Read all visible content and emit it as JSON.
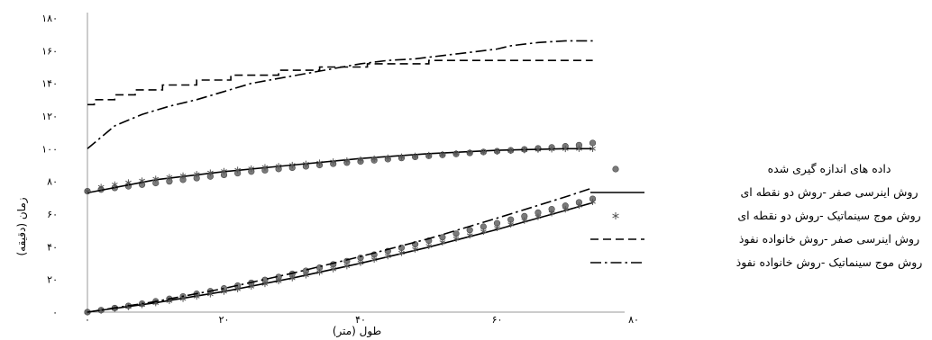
{
  "chart_data": {
    "type": "line",
    "xlabel": "طول (متر)",
    "ylabel": "زمان (دقیقه)",
    "xlim": [
      0,
      80
    ],
    "ylim": [
      0,
      180
    ],
    "x_ticks": [
      {
        "value": 0,
        "label": "۰"
      },
      {
        "value": 20,
        "label": "۲۰"
      },
      {
        "value": 40,
        "label": "۴۰"
      },
      {
        "value": 60,
        "label": "۶۰"
      },
      {
        "value": 80,
        "label": "۸۰"
      }
    ],
    "y_ticks": [
      {
        "value": 0,
        "label": "۰"
      },
      {
        "value": 20,
        "label": "۲۰"
      },
      {
        "value": 40,
        "label": "۴۰"
      },
      {
        "value": 60,
        "label": "۶۰"
      },
      {
        "value": 80,
        "label": "۸۰"
      },
      {
        "value": 100,
        "label": "۱۰۰"
      },
      {
        "value": 120,
        "label": "۱۲۰"
      },
      {
        "value": 140,
        "label": "۱۴۰"
      },
      {
        "value": 160,
        "label": "۱۶۰"
      },
      {
        "value": 180,
        "label": "۱۸۰"
      }
    ],
    "grid": false,
    "legend_position": "right",
    "series": [
      {
        "name": "داده های اندازه گیری شده",
        "style": "dots",
        "color": "#7a7a7a",
        "groups": [
          {
            "x": [
              0,
              2,
              4,
              6,
              8,
              10,
              12,
              14,
              16,
              18,
              20,
              22,
              24,
              26,
              28,
              30,
              32,
              34,
              36,
              38,
              40,
              42,
              44,
              46,
              48,
              50,
              52,
              54,
              56,
              58,
              60,
              62,
              64,
              66,
              68,
              70,
              72,
              74
            ],
            "y": [
              0,
              1.2,
              2.5,
              3.8,
              5.2,
              6.6,
              8.1,
              9.6,
              11.2,
              12.8,
              14.5,
              16.2,
              17.9,
              19.7,
              21.5,
              23.4,
              25.3,
              27.2,
              29.2,
              31.2,
              33.2,
              35.2,
              37.3,
              39.4,
              41.5,
              43.7,
              45.8,
              48,
              50.2,
              52.3,
              54.4,
              56.6,
              58.7,
              60.9,
              63,
              65.1,
              67.2,
              69.3
            ]
          },
          {
            "x": [
              0,
              2,
              4,
              6,
              8,
              10,
              12,
              14,
              16,
              18,
              20,
              22,
              24,
              26,
              28,
              30,
              32,
              34,
              36,
              38,
              40,
              42,
              44,
              46,
              48,
              50,
              52,
              54,
              56,
              58,
              60,
              62,
              64,
              66,
              68,
              70,
              72,
              74
            ],
            "y": [
              74,
              75,
              76,
              77,
              78,
              79,
              80,
              81,
              82,
              83,
              84,
              85,
              86,
              86.8,
              87.6,
              88.4,
              89.2,
              90,
              90.8,
              91.5,
              92.2,
              92.9,
              93.6,
              94.3,
              95,
              95.6,
              96.2,
              96.8,
              97.4,
              98,
              98.5,
              99,
              99.6,
              100.2,
              100.8,
              101.5,
              102.2,
              103.5
            ]
          }
        ]
      },
      {
        "name": "روش اینرسی صفر -روش دو نقطه ای",
        "style": "solid",
        "color": "#000000",
        "groups": [
          {
            "x": [
              0,
              10,
              20,
              30,
              40,
              50,
              60,
              70,
              74
            ],
            "y": [
              0,
              5.7,
              12.6,
              20.8,
              29.9,
              39.8,
              50.6,
              62.2,
              67
            ]
          },
          {
            "x": [
              0,
              10,
              20,
              30,
              40,
              50,
              60,
              70,
              74
            ],
            "y": [
              73,
              81,
              86,
              90,
              94,
              97,
              99,
              100,
              100
            ]
          }
        ]
      },
      {
        "name": "روش موج سینماتیک -روش دو نقطه ای",
        "style": "stars",
        "color": "#555555",
        "groups": [
          {
            "x": [
              0,
              2,
              4,
              6,
              8,
              10,
              12,
              14,
              16,
              18,
              20,
              22,
              24,
              26,
              28,
              30,
              32,
              34,
              36,
              38,
              40,
              42,
              44,
              46,
              48,
              50,
              52,
              54,
              56,
              58,
              60,
              62,
              64,
              66,
              68,
              70,
              72,
              74
            ],
            "y": [
              0,
              1,
              2.1,
              3.2,
              4.4,
              5.6,
              6.9,
              8.2,
              9.6,
              11,
              12.6,
              14.1,
              15.7,
              17.3,
              19,
              20.8,
              22.6,
              24.4,
              26.3,
              28.2,
              30.2,
              32.2,
              34.3,
              36.3,
              38.4,
              40.5,
              42.7,
              44.9,
              47,
              49.3,
              51.5,
              53.7,
              56,
              58.3,
              60.6,
              62.9,
              65.2,
              67.5
            ]
          },
          {
            "x": [
              0,
              2,
              4,
              6,
              8,
              10,
              12,
              14,
              16,
              18,
              20,
              22,
              24,
              26,
              28,
              30,
              32,
              34,
              36,
              38,
              40,
              42,
              44,
              46,
              48,
              50,
              52,
              54,
              56,
              58,
              60,
              62,
              64,
              66,
              68,
              70,
              72,
              74
            ],
            "y": [
              74,
              76.5,
              78,
              79.3,
              80.4,
              81.5,
              82.5,
              83.5,
              84.4,
              85.3,
              86.2,
              87,
              87.8,
              88.6,
              89.3,
              90,
              90.7,
              91.4,
              92.1,
              92.7,
              93.3,
              93.9,
              94.5,
              95.1,
              95.6,
              96.1,
              96.6,
              97.1,
              97.6,
              98,
              98.4,
              98.8,
              99.2,
              99.5,
              99.7,
              99.9,
              100,
              100
            ]
          }
        ]
      },
      {
        "name": "روش اینرسی صفر -روش خانواده نفوذ",
        "style": "dashed",
        "color": "#000000",
        "groups": [
          {
            "x": [
              0,
              1,
              1,
              4,
              4,
              7,
              7,
              11,
              11,
              16,
              16,
              21,
              21,
              28,
              28,
              34,
              34,
              41,
              41,
              50,
              50,
              74
            ],
            "y": [
              127,
              127,
              130,
              130,
              133,
              133,
              136,
              136,
              139,
              139,
              142,
              142,
              145,
              145,
              148,
              148,
              150,
              150,
              152,
              152,
              154,
              154
            ]
          }
        ]
      },
      {
        "name": "روش موج سینماتیک -روش خانواده نفوذ",
        "style": "dashdot",
        "color": "#000000",
        "groups": [
          {
            "x": [
              0,
              4,
              8,
              12,
              16,
              20,
              24,
              28,
              32,
              36,
              40,
              44,
              48,
              52,
              56,
              60,
              62,
              66,
              70,
              74
            ],
            "y": [
              100,
              114,
              121,
              126,
              130,
              135,
              140,
              143,
              146,
              149,
              152,
              154,
              155,
              157,
              159,
              161,
              163,
              165,
              166,
              166
            ]
          },
          {
            "x": [
              0,
              10,
              20,
              30,
              40,
              50,
              60,
              70,
              74
            ],
            "y": [
              0,
              6.5,
              14.5,
              23.8,
              34,
              45,
              57.5,
              70.5,
              76
            ]
          }
        ]
      }
    ]
  }
}
